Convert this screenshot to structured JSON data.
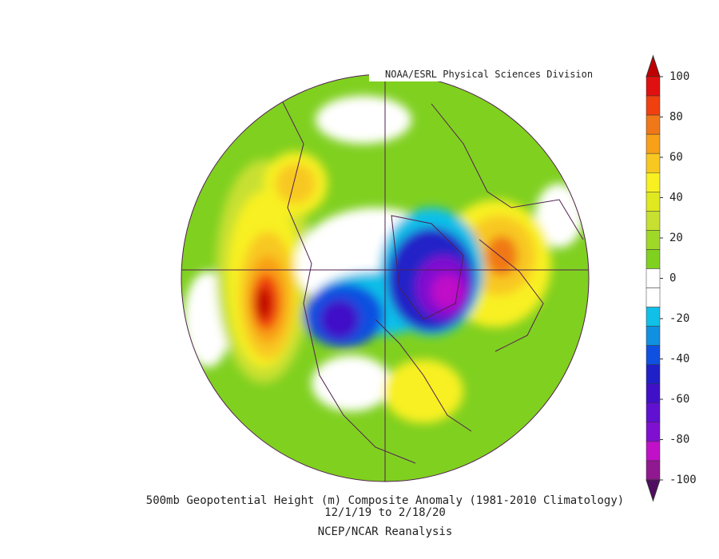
{
  "header": {
    "credit": "NOAA/ESRL Physical Sciences Division"
  },
  "caption": {
    "title": "500mb Geopotential Height (m) Composite Anomaly (1981-2010 Climatology)",
    "dates": "12/1/19  to 2/18/20",
    "source": "NCEP/NCAR Reanalysis"
  },
  "colorbar": {
    "range": [
      -100,
      100
    ],
    "ticks": [
      100,
      80,
      60,
      40,
      20,
      0,
      -20,
      -40,
      -60,
      -80,
      -100
    ],
    "colors": [
      "#c00000",
      "#e01010",
      "#f04010",
      "#f07818",
      "#f8a018",
      "#f8c820",
      "#f8f020",
      "#e0e820",
      "#c8e030",
      "#a0d828",
      "#80d020",
      "#ffffff",
      "#ffffff",
      "#10c0e8",
      "#1090e0",
      "#1050e0",
      "#2020c8",
      "#4010c8",
      "#6010d0",
      "#8010d0",
      "#c010c8",
      "#901890",
      "#500c60"
    ]
  }
}
